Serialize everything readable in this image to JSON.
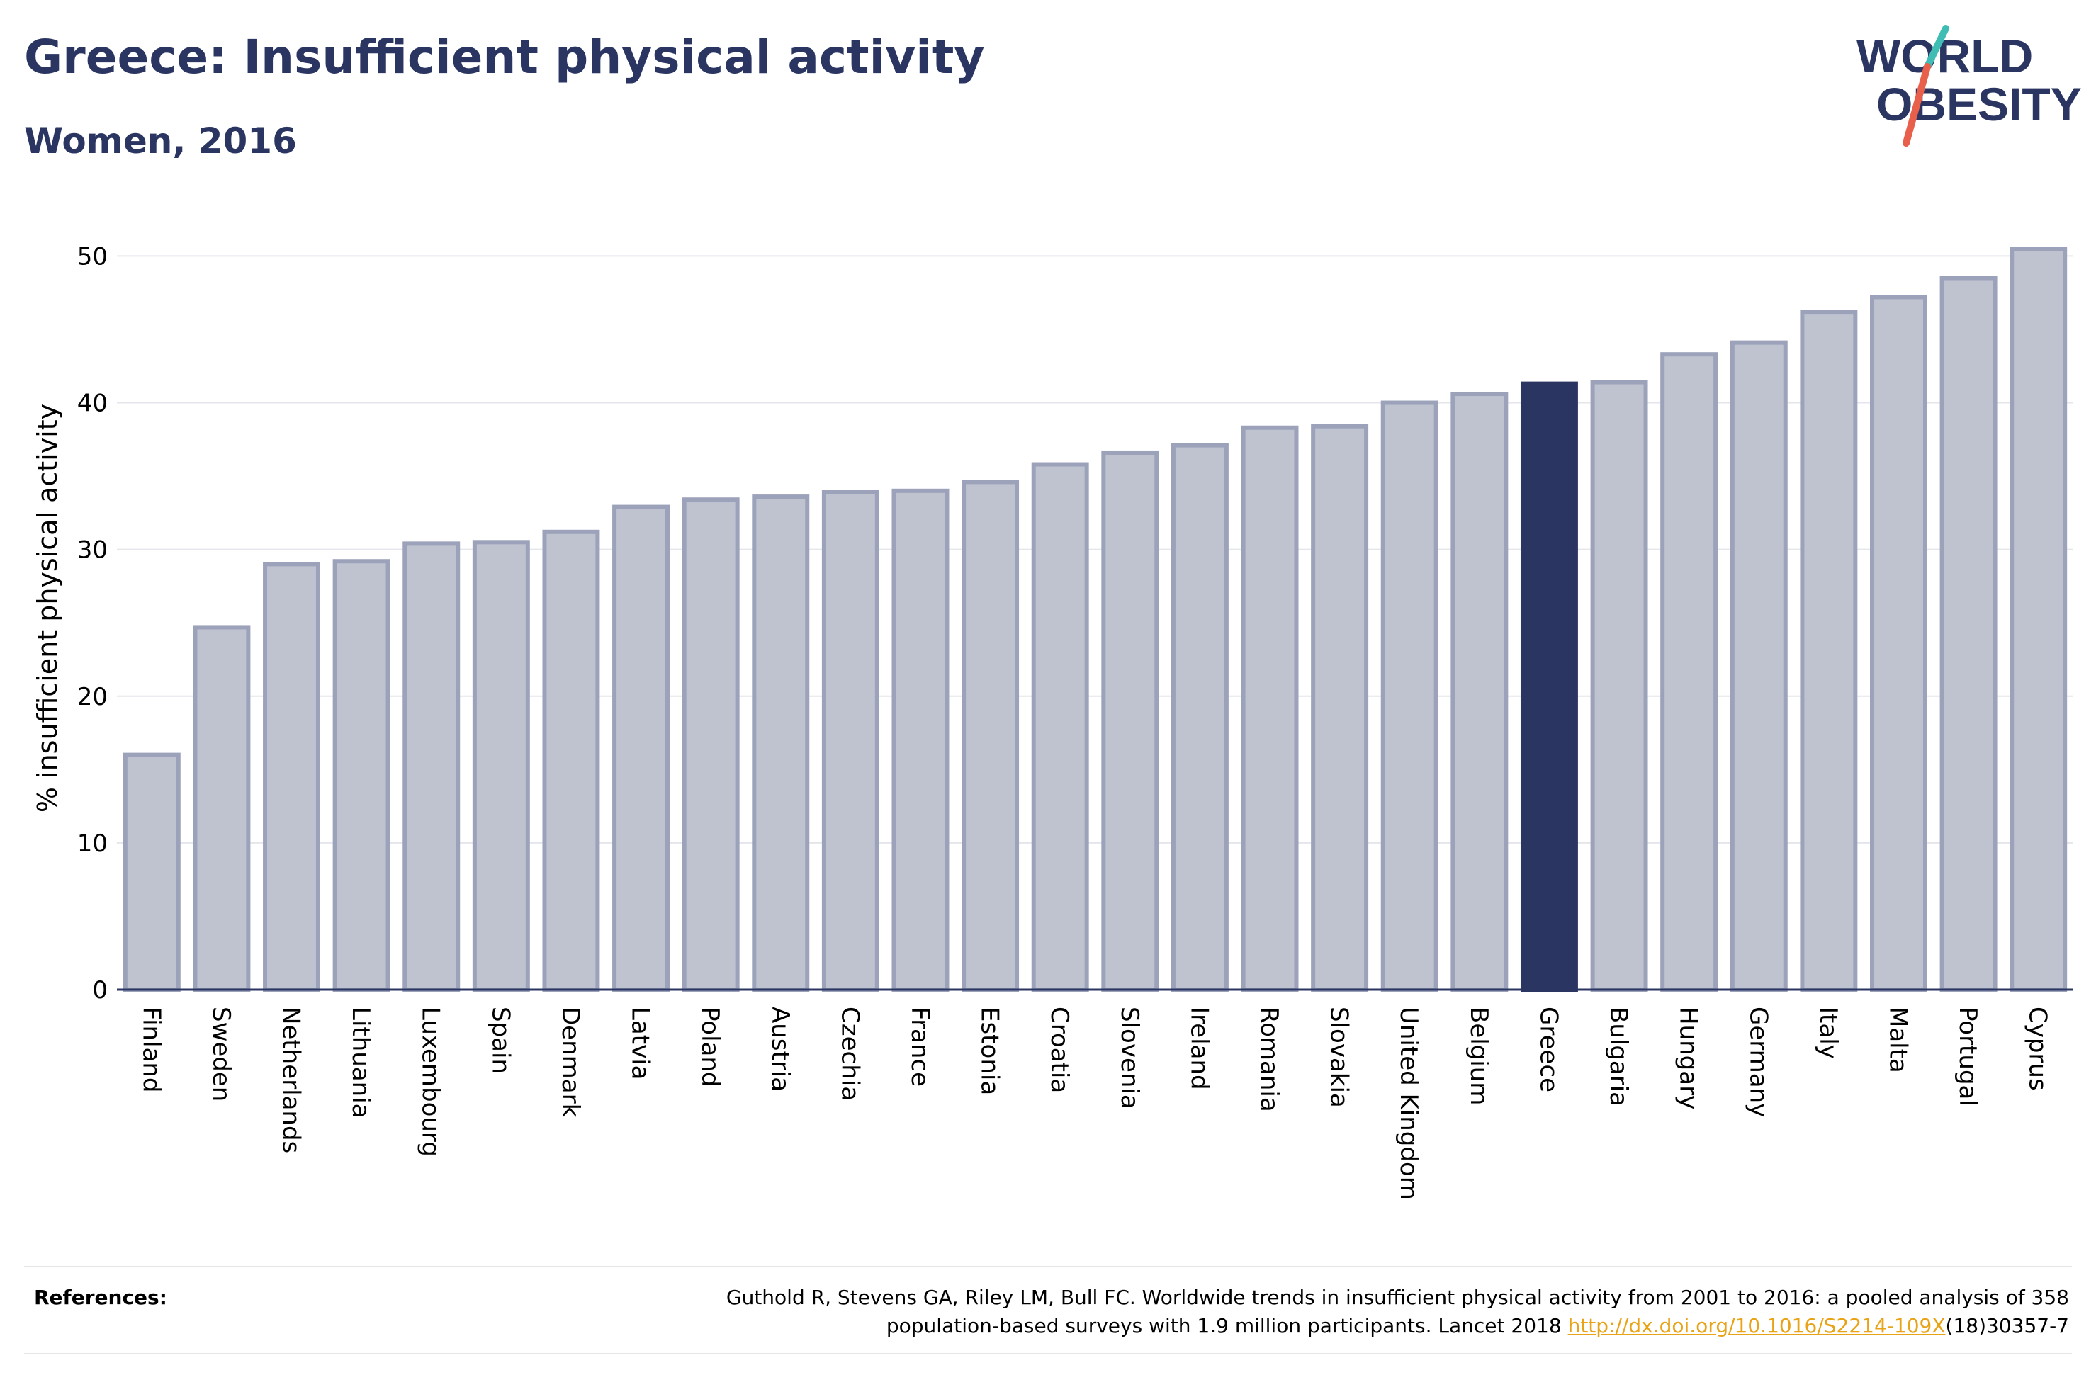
{
  "header": {
    "title": "Greece: Insufficient physical activity",
    "subtitle": "Women, 2016"
  },
  "logo": {
    "line1": "WORLD",
    "line2": "OBESITY",
    "text_color": "#2a3561",
    "slash_top_color": "#3fbdb5",
    "slash_bottom_color": "#e8604c"
  },
  "chart_data": {
    "type": "bar",
    "title": "Greece: Insufficient physical activity",
    "subtitle": "Women, 2016",
    "xlabel": "",
    "ylabel": "% insufficient physical activity",
    "ylim": [
      0,
      52
    ],
    "yticks": [
      0,
      10,
      20,
      30,
      40,
      50
    ],
    "grid": true,
    "highlight": "Greece",
    "colors": {
      "default_fill": "#bfc3d0",
      "default_stroke": "#9ba2ba",
      "highlight": "#2a3561"
    },
    "categories": [
      "Finland",
      "Sweden",
      "Netherlands",
      "Lithuania",
      "Luxembourg",
      "Spain",
      "Denmark",
      "Latvia",
      "Poland",
      "Austria",
      "Czechia",
      "France",
      "Estonia",
      "Croatia",
      "Slovenia",
      "Ireland",
      "Romania",
      "Slovakia",
      "United Kingdom",
      "Belgium",
      "Greece",
      "Bulgaria",
      "Hungary",
      "Germany",
      "Italy",
      "Malta",
      "Portugal",
      "Cyprus"
    ],
    "values": [
      16.0,
      24.7,
      29.0,
      29.2,
      30.4,
      30.5,
      31.2,
      32.9,
      33.4,
      33.6,
      33.9,
      34.0,
      34.6,
      35.8,
      36.6,
      37.1,
      38.3,
      38.4,
      40.0,
      40.6,
      41.3,
      41.4,
      43.3,
      44.1,
      46.2,
      47.2,
      48.5,
      50.5
    ]
  },
  "references": {
    "label": "References:",
    "text_line1": "Guthold R, Stevens GA, Riley LM, Bull FC. Worldwide trends in insufficient physical activity from 2001 to 2016: a pooled analysis of 358",
    "text_line2_before": "population-based surveys with 1.9 million participants. Lancet 2018 ",
    "link": "http://dx.doi.org/10.1016/S2214-109X",
    "text_line2_after": "(18)30357-7"
  }
}
